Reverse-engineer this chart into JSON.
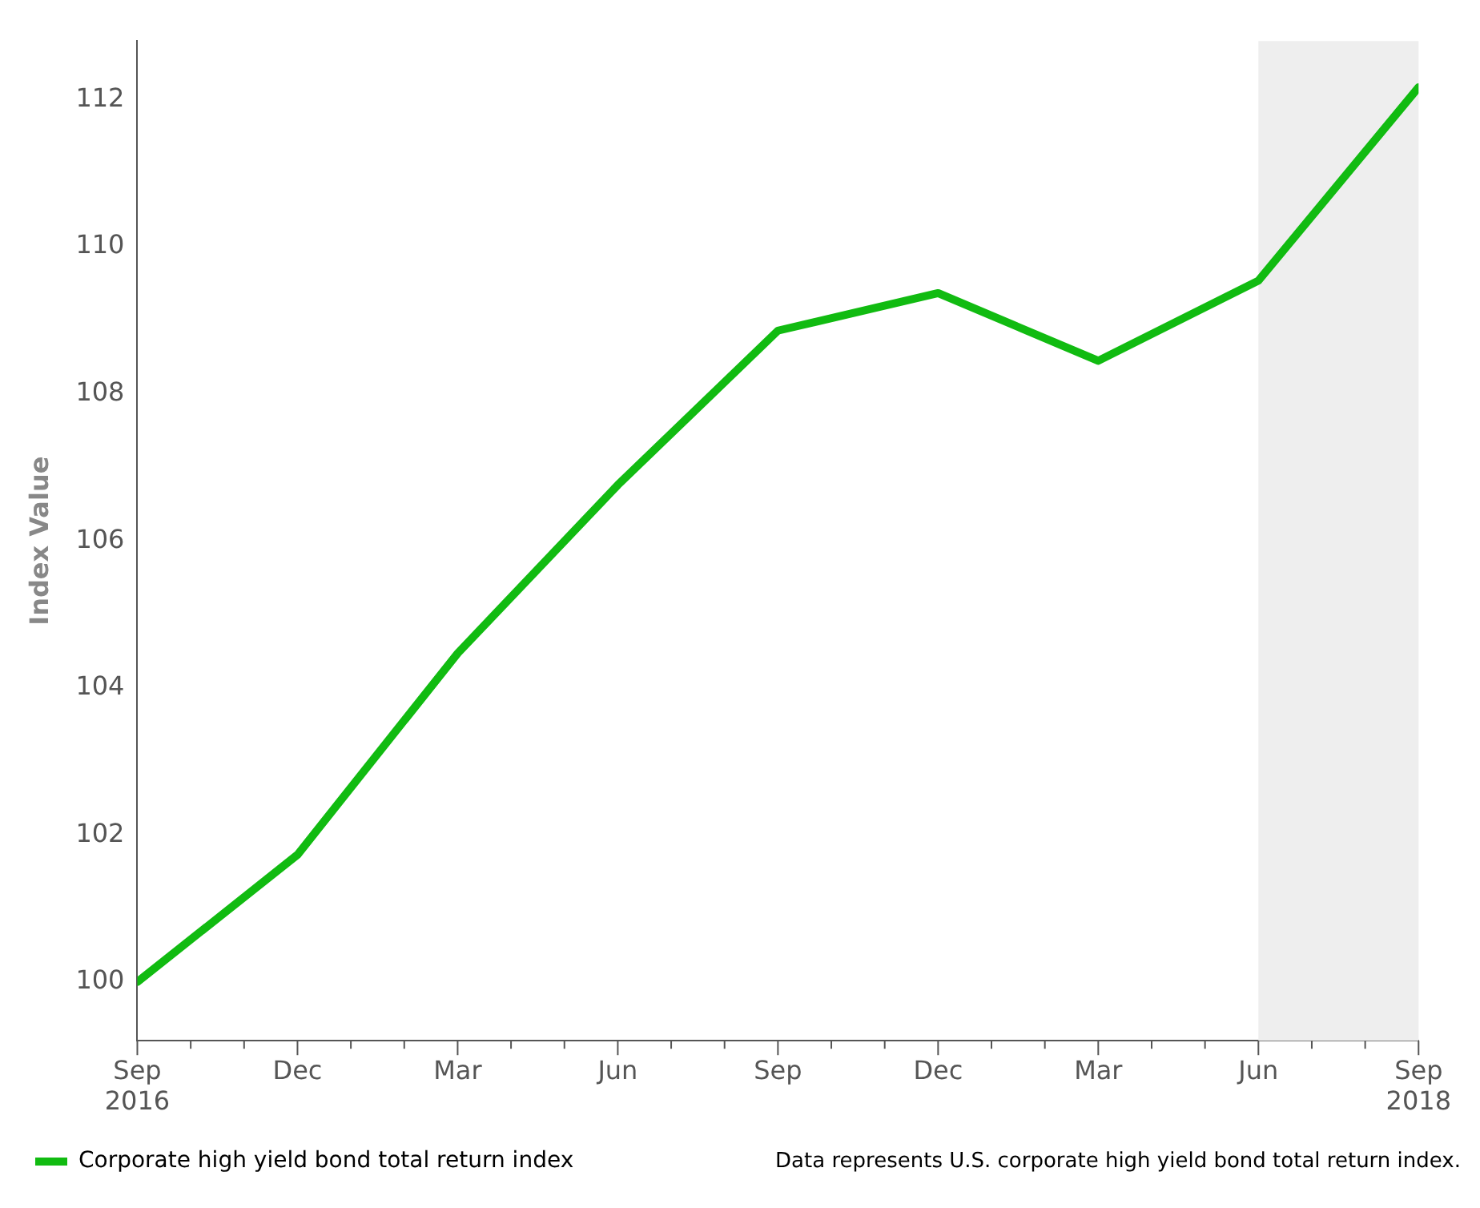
{
  "chart_data": {
    "type": "line",
    "ylabel": "Index Value",
    "x": [
      "2016-09",
      "2016-12",
      "2017-03",
      "2017-06",
      "2017-09",
      "2017-12",
      "2018-03",
      "2018-06",
      "2018-09"
    ],
    "series": [
      {
        "name": "Corporate high yield bond total return index",
        "color": "#11bb11",
        "values": [
          100.0,
          101.73,
          104.47,
          106.76,
          108.86,
          109.37,
          108.45,
          109.54,
          112.17
        ]
      }
    ],
    "xlim": [
      "2016-09",
      "2018-09"
    ],
    "xticks": [
      {
        "value": "2016-09",
        "label": "Sep 2016"
      },
      {
        "value": "2016-10",
        "label": null
      },
      {
        "value": "2016-11",
        "label": null
      },
      {
        "value": "2016-12",
        "label": "Dec"
      },
      {
        "value": "2017-01",
        "label": null
      },
      {
        "value": "2017-02",
        "label": null
      },
      {
        "value": "2017-03",
        "label": "Mar"
      },
      {
        "value": "2017-04",
        "label": null
      },
      {
        "value": "2017-05",
        "label": null
      },
      {
        "value": "2017-06",
        "label": "Jun"
      },
      {
        "value": "2017-07",
        "label": null
      },
      {
        "value": "2017-08",
        "label": null
      },
      {
        "value": "2017-09",
        "label": "Sep"
      },
      {
        "value": "2017-10",
        "label": null
      },
      {
        "value": "2017-11",
        "label": null
      },
      {
        "value": "2017-12",
        "label": "Dec"
      },
      {
        "value": "2018-01",
        "label": null
      },
      {
        "value": "2018-02",
        "label": null
      },
      {
        "value": "2018-03",
        "label": "Mar"
      },
      {
        "value": "2018-04",
        "label": null
      },
      {
        "value": "2018-05",
        "label": null
      },
      {
        "value": "2018-06",
        "label": "Jun"
      },
      {
        "value": "2018-07",
        "label": null
      },
      {
        "value": "2018-08",
        "label": null
      },
      {
        "value": "2018-09",
        "label": "Sep 2018"
      }
    ],
    "ylim": [
      99.2,
      112.8
    ],
    "yticks": [
      100,
      102,
      104,
      106,
      108,
      110,
      112
    ],
    "bands": [
      {
        "axis": "x",
        "from": "2018-06",
        "to": "2018-09",
        "color": "#eeeeee"
      }
    ],
    "grid": false,
    "legend": "bottom left",
    "marker": "none",
    "line_style": "solid",
    "annotations": [
      "Data represents U.S. corporate high yield bond total return index."
    ]
  }
}
